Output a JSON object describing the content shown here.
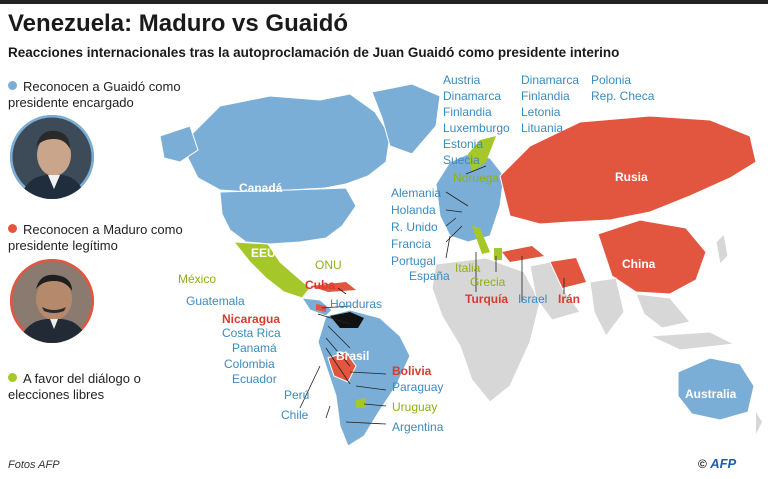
{
  "title": "Venezuela: Maduro vs Guaidó",
  "subtitle": "Reacciones internacionales tras la autoproclamación de Juan Guaidó como presidente interino",
  "legend": {
    "guaido": {
      "text": "Reconocen a Guaidó como presidente encargado",
      "color": "#7aaed6"
    },
    "maduro": {
      "text": "Reconocen a Maduro como presidente legítimo",
      "color": "#e2553f"
    },
    "dialogo": {
      "text": "A favor del diálogo o elecciones libres",
      "color": "#a6c72a"
    }
  },
  "colors": {
    "land_neutral": "#d7d7d7",
    "guaido": "#7aaed6",
    "maduro": "#e2553f",
    "dialogo": "#a6c72a",
    "venezuela": "#111111"
  },
  "icons": [
    "guaido-portrait",
    "maduro-portrait",
    "afp-logo"
  ],
  "labels": {
    "canada": "Canadá",
    "eeuu": "EEUU",
    "mexico": "México",
    "onu": "ONU",
    "cuba": "Cuba",
    "guatemala": "Guatemala",
    "honduras": "Honduras",
    "nicaragua": "Nicaragua",
    "costa_rica": "Costa Rica",
    "panama": "Panamá",
    "colombia": "Colombia",
    "ecuador": "Ecuador",
    "peru": "Perú",
    "chile": "Chile",
    "brasil": "Brasil",
    "bolivia": "Bolivia",
    "paraguay": "Paraguay",
    "uruguay": "Uruguay",
    "argentina": "Argentina",
    "austria": "Austria",
    "dinamarca": "Dinamarca",
    "finlandia": "Finlandia",
    "luxemburgo": "Luxemburgo",
    "estonia": "Estonia",
    "suecia": "Suecia",
    "dinamarca2": "Dinamarca",
    "finlandia2": "Finlandia",
    "letonia": "Letonia",
    "lituania": "Lituania",
    "polonia": "Polonia",
    "rep_checa": "Rep. Checa",
    "noruega": "Noruega",
    "alemania": "Alemania",
    "holanda": "Holanda",
    "r_unido": "R. Unido",
    "francia": "Francia",
    "portugal": "Portugal",
    "espana": "España",
    "italia": "Italia",
    "grecia": "Grecia",
    "turquia": "Turquía",
    "israel": "Israel",
    "iran": "Irán",
    "rusia": "Rusia",
    "china": "China",
    "australia": "Australia"
  },
  "credit": "Fotos AFP",
  "copyright": "©",
  "brand": "AFP"
}
